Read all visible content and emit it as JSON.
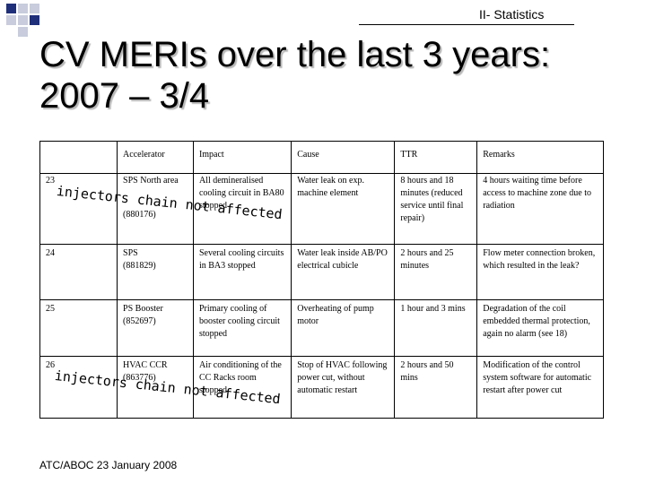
{
  "header": {
    "section": "II- Statistics",
    "title_line1": "CV MERIs over the last 3 years:",
    "title_line2": "2007 – 3/4"
  },
  "table": {
    "columns": [
      "Accelerator",
      "Impact",
      "Cause",
      "TTR",
      "Remarks"
    ],
    "rows": [
      {
        "id": "23",
        "accelerator": "SPS North area",
        "accelerator_ref": "(880176)",
        "impact": "All demineralised cooling circuit in BA80 stopped",
        "cause": "Water leak on exp. machine element",
        "ttr": "8 hours and 18 minutes (reduced service until final repair)",
        "remarks": "4 hours waiting time before access to machine zone due to radiation"
      },
      {
        "id": "24",
        "accelerator": "SPS",
        "accelerator_ref": "(881829)",
        "impact": "Several cooling circuits in BA3 stopped",
        "cause": "Water leak inside AB/PO electrical cubicle",
        "ttr": "2 hours and 25 minutes",
        "remarks": "Flow meter connection broken, which resulted in the leak?"
      },
      {
        "id": "25",
        "accelerator": "PS Booster",
        "accelerator_ref": "(852697)",
        "impact": "Primary cooling of booster cooling circuit stopped",
        "cause": "Overheating of pump motor",
        "ttr": "1 hour and 3 mins",
        "remarks": "Degradation of the coil embedded thermal protection, again no alarm (see 18)"
      },
      {
        "id": "26",
        "accelerator": "HVAC CCR",
        "accelerator_ref": "(863776)",
        "impact": "Air conditioning of the CC Racks room stopped",
        "cause": "Stop of HVAC following power cut, without automatic restart",
        "ttr": "2 hours and 50 mins",
        "remarks": "Modification of the control system software for automatic restart after power cut"
      }
    ]
  },
  "annotations": {
    "row23_line1": "injectors chain not affected",
    "row26_line1": "injectors chain not affected"
  },
  "footer": {
    "text": "ATC/ABOC 23 January 2008"
  },
  "colors": {
    "accent_square": "#1f2f7a",
    "light_square": "#c8ccdc",
    "title_shadow": "#b8b8b8"
  }
}
